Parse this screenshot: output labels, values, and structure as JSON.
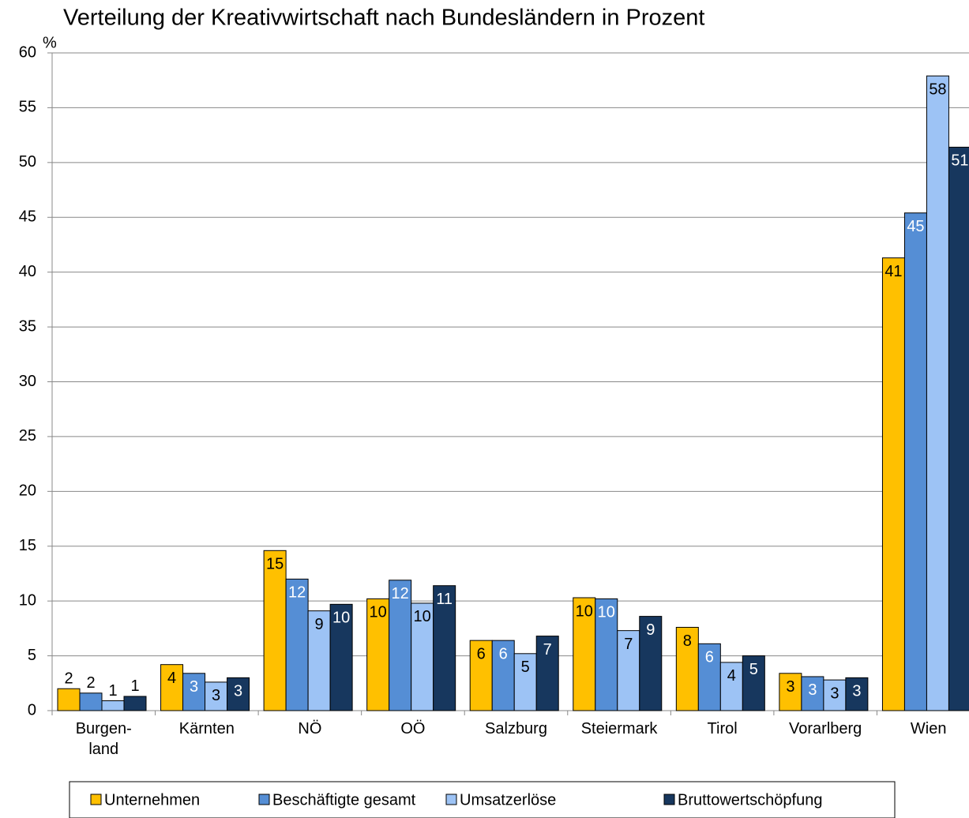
{
  "chart_data": {
    "type": "bar",
    "title": "Verteilung der Kreativwirtschaft nach Bundesländern in Prozent",
    "y_label": "%",
    "categories": [
      "Burgen-\nland",
      "Kärnten",
      "NÖ",
      "OÖ",
      "Salzburg",
      "Steiermark",
      "Tirol",
      "Vorarlberg",
      "Wien"
    ],
    "series": [
      {
        "name": "Unternehmen",
        "color": "#ffc000",
        "values": [
          2.0,
          4.2,
          14.6,
          10.2,
          6.4,
          10.3,
          7.6,
          3.4,
          41.3
        ],
        "value_labels": [
          "2",
          "4",
          "15",
          "10",
          "6",
          "10",
          "8",
          "3",
          "41"
        ]
      },
      {
        "name": "Beschäftigte gesamt",
        "color": "#558ed5",
        "values": [
          1.6,
          3.4,
          12.0,
          11.9,
          6.4,
          10.2,
          6.1,
          3.1,
          45.4
        ],
        "value_labels": [
          "2",
          "3",
          "12",
          "12",
          "6",
          "10",
          "6",
          "3",
          "45"
        ]
      },
      {
        "name": "Umsatzerlöse",
        "color": "#9dc3f5",
        "values": [
          0.9,
          2.6,
          9.1,
          9.8,
          5.2,
          7.3,
          4.4,
          2.8,
          57.9
        ],
        "value_labels": [
          "1",
          "3",
          "9",
          "10",
          "5",
          "7",
          "4",
          "3",
          "58"
        ]
      },
      {
        "name": "Bruttowertschöpfung",
        "color": "#17375e",
        "values": [
          1.3,
          3.0,
          9.7,
          11.4,
          6.8,
          8.6,
          5.0,
          3.0,
          51.4
        ],
        "value_labels": [
          "1",
          "3",
          "10",
          "11",
          "7",
          "9",
          "5",
          "3",
          "51"
        ]
      }
    ],
    "ylim": [
      0,
      60
    ],
    "yticks": [
      0,
      5,
      10,
      15,
      20,
      25,
      30,
      35,
      40,
      45,
      50,
      55,
      60
    ],
    "grid": true
  }
}
